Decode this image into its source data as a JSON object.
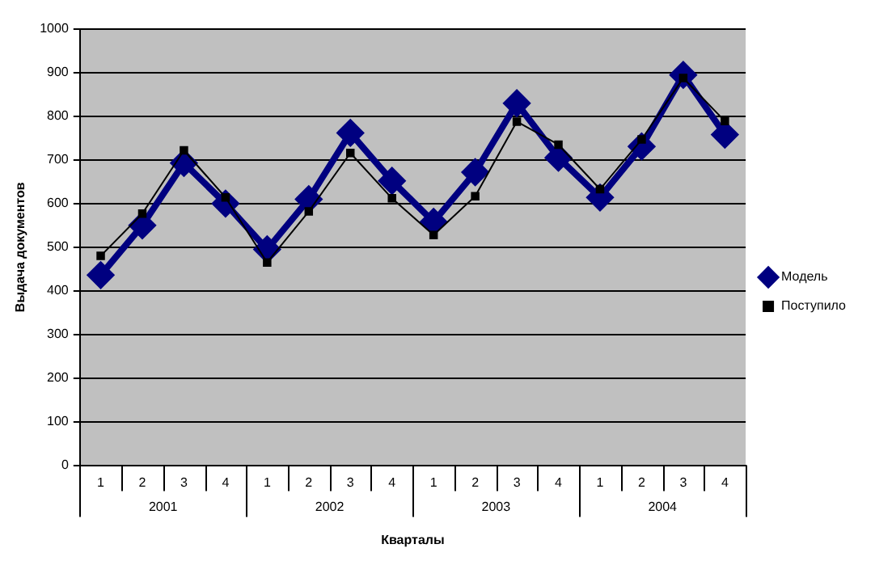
{
  "chart_data": {
    "type": "line",
    "xlabel": "Кварталы",
    "ylabel": "Выдача документов",
    "categories": [
      "1",
      "2",
      "3",
      "4",
      "1",
      "2",
      "3",
      "4",
      "1",
      "2",
      "3",
      "4",
      "1",
      "2",
      "3",
      "4"
    ],
    "annotations": [
      "2001",
      "2002",
      "2003",
      "2004"
    ],
    "series": [
      {
        "name": "Модель",
        "color": "#000080",
        "marker": "diamond",
        "values": [
          436,
          550,
          693,
          600,
          495,
          610,
          762,
          652,
          558,
          672,
          830,
          705,
          614,
          731,
          895,
          758
        ]
      },
      {
        "name": "Поступило",
        "color": "#000000",
        "marker": "square",
        "values": [
          480,
          577,
          722,
          614,
          465,
          582,
          716,
          612,
          528,
          617,
          788,
          735,
          633,
          747,
          888,
          789
        ]
      }
    ],
    "ylim": [
      0,
      1000
    ],
    "yticks": [
      0,
      100,
      200,
      300,
      400,
      500,
      600,
      700,
      800,
      900,
      1000
    ],
    "grid": "y",
    "legend": "right"
  }
}
